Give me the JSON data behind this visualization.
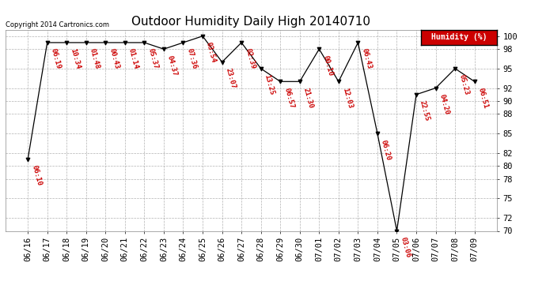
{
  "title": "Outdoor Humidity Daily High 20140710",
  "copyright": "Copyright 2014 Cartronics.com",
  "legend_label": "Humidity (%)",
  "background_color": "#ffffff",
  "line_color": "#cc0000",
  "point_color": "#000000",
  "label_color": "#cc0000",
  "dates": [
    "06/16",
    "06/17",
    "06/18",
    "06/19",
    "06/20",
    "06/21",
    "06/22",
    "06/23",
    "06/24",
    "06/25",
    "06/26",
    "06/27",
    "06/28",
    "06/29",
    "06/30",
    "07/01",
    "07/02",
    "07/03",
    "07/04",
    "07/05",
    "07/06",
    "07/07",
    "07/08",
    "07/09"
  ],
  "values": [
    81,
    99,
    99,
    99,
    99,
    99,
    99,
    98,
    99,
    100,
    96,
    99,
    95,
    93,
    93,
    98,
    93,
    99,
    85,
    70,
    91,
    92,
    95,
    93
  ],
  "times": [
    "06:10",
    "06:19",
    "10:34",
    "01:48",
    "00:43",
    "01:14",
    "05:37",
    "04:37",
    "07:36",
    "03:54",
    "23:07",
    "02:39",
    "13:25",
    "06:57",
    "21:30",
    "00:10",
    "12:03",
    "06:43",
    "06:20",
    "03:06",
    "22:55",
    "04:20",
    "05:23",
    "06:51"
  ],
  "ylim": [
    70,
    101
  ],
  "yticks": [
    70,
    72,
    75,
    78,
    80,
    82,
    85,
    88,
    90,
    92,
    95,
    98,
    100
  ],
  "title_fontsize": 11,
  "label_fontsize": 6.5,
  "tick_fontsize": 7.5
}
